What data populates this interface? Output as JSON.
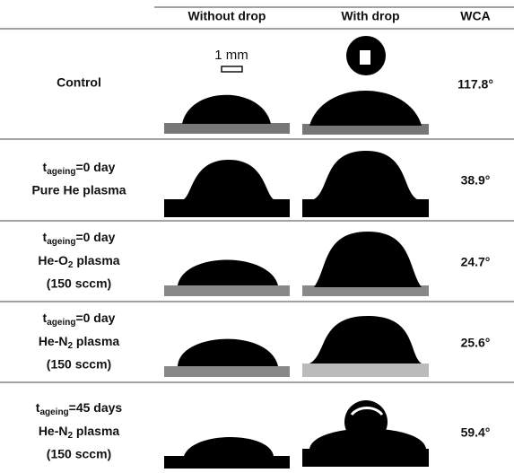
{
  "header": {
    "columns": [
      "Without drop",
      "With drop",
      "WCA"
    ]
  },
  "scale_bar": "1 mm",
  "rows": [
    {
      "label": [
        {
          "text": "Control"
        }
      ],
      "wca": "117.8°"
    },
    {
      "label": [
        {
          "main": "t",
          "sub": "ageing",
          "rest": "=0 day"
        },
        {
          "text": "Pure He plasma"
        }
      ],
      "wca": "38.9°"
    },
    {
      "label": [
        {
          "main": "t",
          "sub": "ageing",
          "rest": "=0 day"
        },
        {
          "main": "He-O",
          "sub": "2",
          "rest": " plasma"
        },
        {
          "text": "(150 sccm)"
        }
      ],
      "wca": "24.7°"
    },
    {
      "label": [
        {
          "main": "t",
          "sub": "ageing",
          "rest": "=0 day"
        },
        {
          "main": "He-N",
          "sub": "2",
          "rest": " plasma"
        },
        {
          "text": "(150 sccm)"
        }
      ],
      "wca": "25.6°"
    },
    {
      "label": [
        {
          "main": "t",
          "sub": "ageing",
          "rest": "=45 days"
        },
        {
          "main": "He-N",
          "sub": "2",
          "rest": " plasma"
        },
        {
          "text": "(150 sccm)"
        }
      ],
      "wca": "59.4°"
    }
  ]
}
